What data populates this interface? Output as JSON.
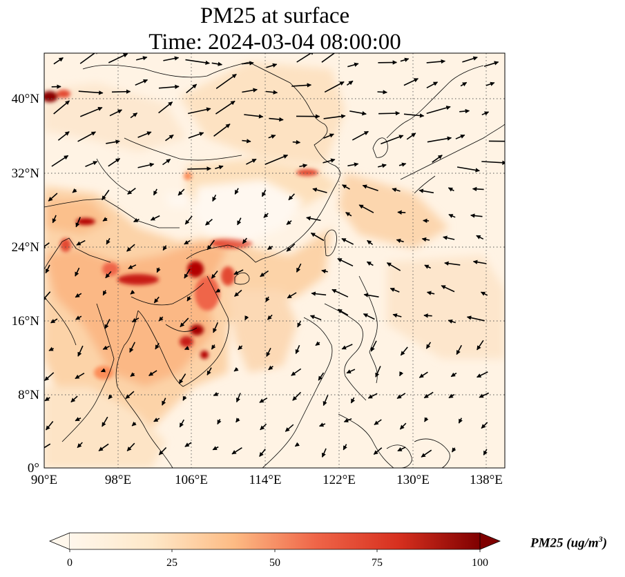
{
  "title": {
    "line1": "PM25 at surface",
    "line2": "Time: 2024-03-04 08:00:00"
  },
  "map": {
    "lon_range": [
      90,
      140
    ],
    "lat_range": [
      0,
      44
    ],
    "x_ticks": [
      "90°E",
      "98°E",
      "106°E",
      "114°E",
      "122°E",
      "130°E",
      "138°E"
    ],
    "y_ticks": [
      "0°",
      "8°N",
      "16°N",
      "24°N",
      "32°N",
      "40°N"
    ],
    "gridlines": true,
    "colormap": "OrRd",
    "colors": {
      "low": "#fff7ec",
      "mid": "#fdbb84",
      "high": "#d7301f",
      "max": "#7f0000",
      "coast": "#000000"
    }
  },
  "colorbar": {
    "ticks": [
      "0",
      "25",
      "50",
      "75",
      "100"
    ],
    "label_main": "PM25 (ug/m",
    "label_sup": "3",
    "label_close": ")",
    "range": [
      0,
      100
    ],
    "extend": "both"
  }
}
